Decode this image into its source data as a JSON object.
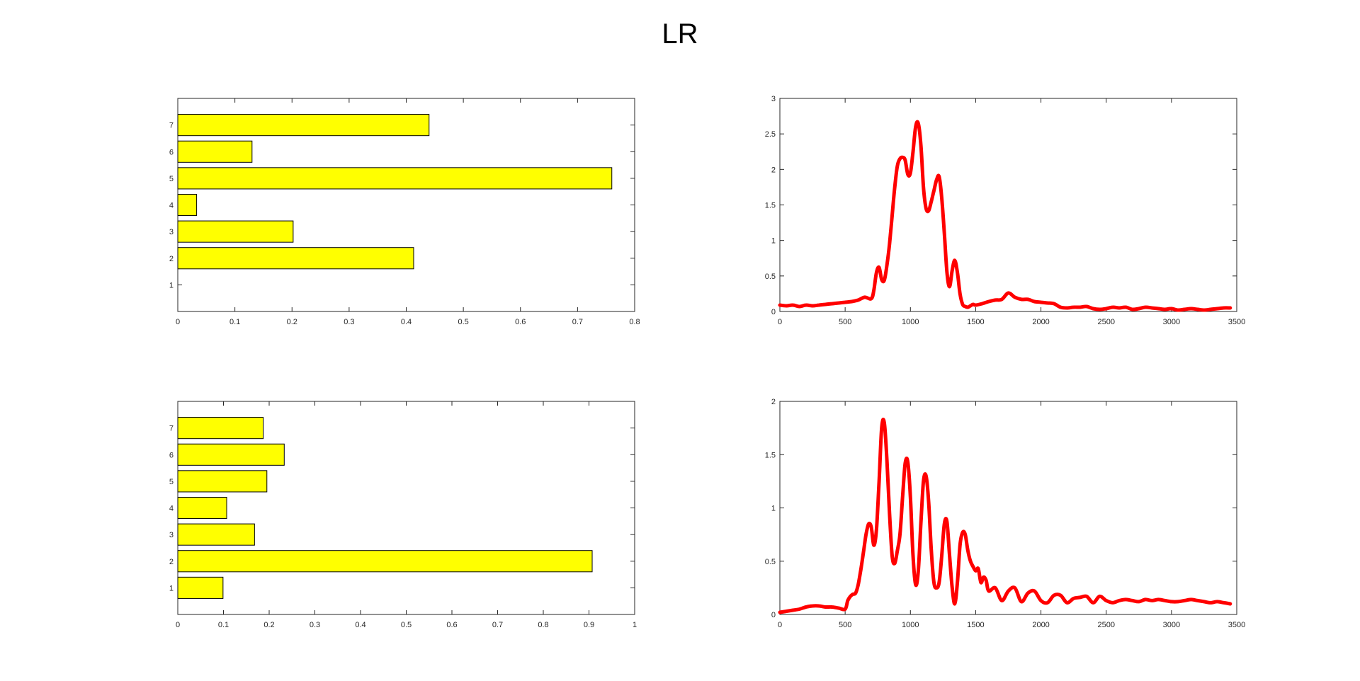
{
  "title": "LR",
  "colors": {
    "bar_fill": "#ffff00",
    "bar_edge": "#000000",
    "line": "#ff0000",
    "axes": "#262626"
  },
  "chart_data": [
    {
      "id": "bar-top",
      "type": "bar",
      "orientation": "horizontal",
      "categories": [
        "1",
        "2",
        "3",
        "4",
        "5",
        "6",
        "7"
      ],
      "values": [
        0,
        0.413,
        0.202,
        0.033,
        0.76,
        0.13,
        0.44
      ],
      "xlim": [
        0,
        0.8
      ],
      "xticks": [
        "0",
        "0.1",
        "0.2",
        "0.3",
        "0.4",
        "0.5",
        "0.6",
        "0.7",
        "0.8"
      ],
      "ylim": [
        0,
        8
      ],
      "yticks": [
        "1",
        "2",
        "3",
        "4",
        "5",
        "6",
        "7"
      ],
      "grid": false
    },
    {
      "id": "line-top",
      "type": "line",
      "x": [
        0,
        50,
        100,
        150,
        200,
        250,
        300,
        350,
        400,
        450,
        500,
        550,
        600,
        650,
        700,
        720,
        740,
        760,
        780,
        800,
        820,
        840,
        860,
        880,
        900,
        920,
        940,
        960,
        980,
        1000,
        1020,
        1040,
        1060,
        1080,
        1100,
        1120,
        1140,
        1160,
        1180,
        1200,
        1220,
        1240,
        1260,
        1280,
        1300,
        1320,
        1340,
        1360,
        1380,
        1400,
        1420,
        1440,
        1460,
        1480,
        1500,
        1550,
        1600,
        1650,
        1700,
        1750,
        1800,
        1850,
        1900,
        1950,
        2000,
        2050,
        2100,
        2150,
        2200,
        2250,
        2300,
        2350,
        2400,
        2450,
        2500,
        2550,
        2600,
        2650,
        2700,
        2750,
        2800,
        2850,
        2900,
        2950,
        3000,
        3050,
        3100,
        3150,
        3200,
        3250,
        3300,
        3350,
        3400,
        3450
      ],
      "y": [
        0.09,
        0.08,
        0.09,
        0.07,
        0.09,
        0.08,
        0.09,
        0.1,
        0.11,
        0.12,
        0.13,
        0.14,
        0.16,
        0.2,
        0.18,
        0.3,
        0.55,
        0.62,
        0.45,
        0.44,
        0.65,
        0.95,
        1.35,
        1.75,
        2.05,
        2.15,
        2.17,
        2.13,
        1.93,
        1.95,
        2.25,
        2.6,
        2.65,
        2.35,
        1.75,
        1.45,
        1.42,
        1.55,
        1.7,
        1.85,
        1.9,
        1.6,
        1.1,
        0.55,
        0.35,
        0.58,
        0.72,
        0.55,
        0.25,
        0.1,
        0.07,
        0.06,
        0.08,
        0.1,
        0.09,
        0.11,
        0.14,
        0.16,
        0.17,
        0.26,
        0.2,
        0.17,
        0.17,
        0.14,
        0.13,
        0.12,
        0.11,
        0.06,
        0.05,
        0.06,
        0.06,
        0.07,
        0.04,
        0.03,
        0.04,
        0.06,
        0.05,
        0.06,
        0.03,
        0.04,
        0.06,
        0.05,
        0.04,
        0.03,
        0.04,
        0.02,
        0.03,
        0.04,
        0.03,
        0.02,
        0.03,
        0.04,
        0.05,
        0.05
      ],
      "xlim": [
        0,
        3500
      ],
      "xticks": [
        "0",
        "500",
        "1000",
        "1500",
        "2000",
        "2500",
        "3000",
        "3500"
      ],
      "ylim": [
        0,
        3
      ],
      "yticks": [
        "0",
        "0.5",
        "1",
        "1.5",
        "2",
        "2.5",
        "3"
      ],
      "grid": false
    },
    {
      "id": "bar-bottom",
      "type": "bar",
      "orientation": "horizontal",
      "categories": [
        "1",
        "2",
        "3",
        "4",
        "5",
        "6",
        "7"
      ],
      "values": [
        0.099,
        0.907,
        0.168,
        0.107,
        0.195,
        0.233,
        0.187
      ],
      "xlim": [
        0,
        1
      ],
      "xticks": [
        "0",
        "0.1",
        "0.2",
        "0.3",
        "0.4",
        "0.5",
        "0.6",
        "0.7",
        "0.8",
        "0.9",
        "1"
      ],
      "ylim": [
        0,
        8
      ],
      "yticks": [
        "1",
        "2",
        "3",
        "4",
        "5",
        "6",
        "7"
      ],
      "grid": false
    },
    {
      "id": "line-bottom",
      "type": "line",
      "x": [
        0,
        50,
        100,
        150,
        200,
        250,
        300,
        350,
        400,
        450,
        500,
        520,
        540,
        560,
        580,
        600,
        620,
        640,
        660,
        680,
        700,
        720,
        740,
        760,
        780,
        800,
        820,
        840,
        860,
        880,
        900,
        920,
        940,
        960,
        980,
        1000,
        1020,
        1040,
        1060,
        1080,
        1100,
        1120,
        1140,
        1160,
        1180,
        1200,
        1220,
        1240,
        1260,
        1280,
        1300,
        1320,
        1340,
        1360,
        1380,
        1400,
        1420,
        1440,
        1460,
        1480,
        1500,
        1520,
        1540,
        1560,
        1580,
        1600,
        1650,
        1700,
        1750,
        1800,
        1850,
        1900,
        1950,
        2000,
        2050,
        2100,
        2150,
        2200,
        2250,
        2300,
        2350,
        2400,
        2450,
        2500,
        2550,
        2600,
        2650,
        2700,
        2750,
        2800,
        2850,
        2900,
        2950,
        3000,
        3050,
        3100,
        3150,
        3200,
        3250,
        3300,
        3350,
        3400,
        3450
      ],
      "y": [
        0.02,
        0.03,
        0.04,
        0.05,
        0.07,
        0.08,
        0.08,
        0.07,
        0.07,
        0.06,
        0.05,
        0.13,
        0.17,
        0.19,
        0.2,
        0.28,
        0.42,
        0.58,
        0.75,
        0.85,
        0.82,
        0.65,
        0.8,
        1.25,
        1.75,
        1.8,
        1.45,
        0.95,
        0.55,
        0.48,
        0.6,
        0.75,
        1.1,
        1.42,
        1.43,
        1.1,
        0.55,
        0.28,
        0.4,
        0.85,
        1.25,
        1.3,
        1.05,
        0.6,
        0.3,
        0.25,
        0.3,
        0.55,
        0.85,
        0.87,
        0.55,
        0.25,
        0.1,
        0.3,
        0.65,
        0.77,
        0.75,
        0.6,
        0.5,
        0.45,
        0.41,
        0.43,
        0.3,
        0.35,
        0.32,
        0.22,
        0.25,
        0.13,
        0.22,
        0.25,
        0.12,
        0.2,
        0.22,
        0.13,
        0.11,
        0.18,
        0.18,
        0.11,
        0.15,
        0.16,
        0.17,
        0.11,
        0.17,
        0.13,
        0.11,
        0.13,
        0.14,
        0.13,
        0.12,
        0.14,
        0.13,
        0.14,
        0.13,
        0.12,
        0.12,
        0.13,
        0.14,
        0.13,
        0.12,
        0.11,
        0.12,
        0.11,
        0.1
      ],
      "xlim": [
        0,
        3500
      ],
      "xticks": [
        "0",
        "500",
        "1000",
        "1500",
        "2000",
        "2500",
        "3000",
        "3500"
      ],
      "ylim": [
        0,
        2
      ],
      "yticks": [
        "0",
        "0.5",
        "1",
        "1.5",
        "2"
      ],
      "grid": false
    }
  ]
}
